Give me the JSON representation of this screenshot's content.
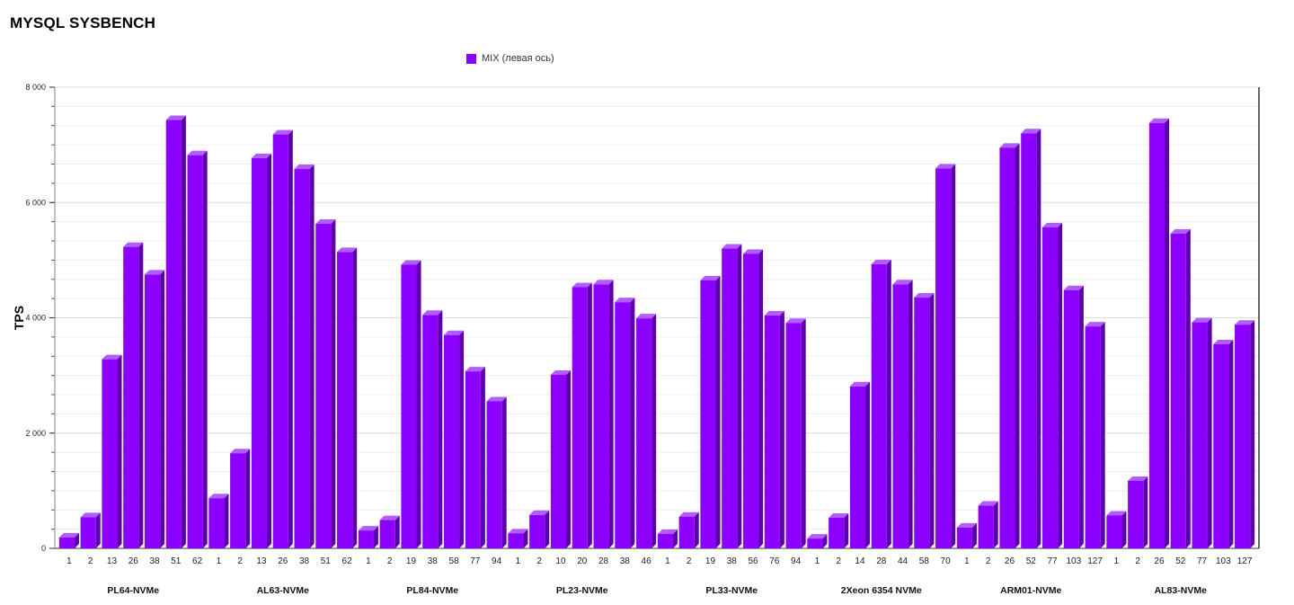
{
  "title": "MYSQL SYSBENCH",
  "colors": {
    "bar_front": "#8b00ff",
    "bar_side": "#5d00aa",
    "bar_top": "#b15cff",
    "grid": "#dddddd",
    "axis": "#888888"
  },
  "chart_data": {
    "type": "bar",
    "title": "MYSQL SYSBENCH",
    "ylabel": "TPS",
    "ylim": [
      0,
      8000
    ],
    "yticks": [
      "0",
      "2 000",
      "4 000",
      "6 000",
      "8 000"
    ],
    "ytick_values": [
      0,
      2000,
      4000,
      6000,
      8000
    ],
    "grid": true,
    "legend": {
      "placement": "top",
      "entries": [
        "MIX (левая ось)"
      ]
    },
    "series": [
      {
        "name": "MIX (левая ось)"
      }
    ],
    "groups": [
      {
        "name": "PL64-NVMe",
        "labels": [
          "1",
          "2",
          "13",
          "26",
          "38",
          "51",
          "62"
        ],
        "values": [
          190,
          540,
          3280,
          5230,
          4750,
          7430,
          6820
        ]
      },
      {
        "name": "AL63-NVMe",
        "labels": [
          "1",
          "2",
          "13",
          "26",
          "38",
          "51",
          "62"
        ],
        "values": [
          870,
          1650,
          6770,
          7180,
          6580,
          5630,
          5140
        ]
      },
      {
        "name": "PL84-NVMe",
        "labels": [
          "1",
          "2",
          "19",
          "38",
          "58",
          "77",
          "94"
        ],
        "values": [
          310,
          490,
          4920,
          4050,
          3700,
          3070,
          2550
        ]
      },
      {
        "name": "PL23-NVMe",
        "labels": [
          "1",
          "2",
          "10",
          "20",
          "28",
          "38",
          "46"
        ],
        "values": [
          260,
          580,
          3010,
          4530,
          4580,
          4270,
          3990
        ]
      },
      {
        "name": "PL33-NVMe",
        "labels": [
          "1",
          "2",
          "19",
          "38",
          "56",
          "76",
          "94"
        ],
        "values": [
          250,
          550,
          4650,
          5200,
          5110,
          4040,
          3910
        ]
      },
      {
        "name": "2Xeon 6354 NVMe",
        "labels": [
          "1",
          "2",
          "14",
          "28",
          "44",
          "58",
          "70"
        ],
        "values": [
          170,
          530,
          2810,
          4930,
          4580,
          4350,
          6590
        ]
      },
      {
        "name": "ARM01-NVMe",
        "labels": [
          "1",
          "2",
          "26",
          "52",
          "77",
          "103",
          "127"
        ],
        "values": [
          360,
          740,
          6950,
          7200,
          5570,
          4480,
          3850
        ]
      },
      {
        "name": "AL83-NVMe",
        "labels": [
          "1",
          "2",
          "26",
          "52",
          "77",
          "103",
          "127"
        ],
        "values": [
          570,
          1170,
          7380,
          5460,
          3920,
          3540,
          3880
        ]
      }
    ]
  }
}
